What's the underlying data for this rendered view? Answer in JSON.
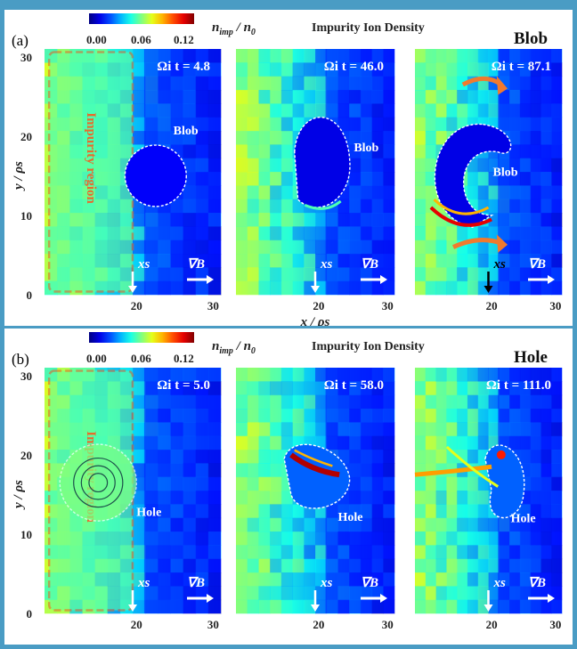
{
  "chart_data": [
    {
      "type": "heatmap",
      "panel_label": "(a)",
      "title": "Impurity Ion Density",
      "case_label": "Blob",
      "colorbar": {
        "label": "n_imp / n_0",
        "ticks": [
          "0.00",
          "0.06",
          "0.12"
        ],
        "range": [
          0.0,
          0.12
        ]
      },
      "ylabel": "y / ρs",
      "xlabel": "x / ρs",
      "y_ticks": [
        "0",
        "10",
        "20",
        "30"
      ],
      "x_ticks_per_subplot": [
        [
          "20",
          "30"
        ],
        [
          "20",
          "30"
        ],
        [
          "20",
          "30"
        ]
      ],
      "region_label": "Impurity region",
      "marker_label": "xs",
      "gradient_label": "∇B",
      "subplots": [
        {
          "time_label": "Ωi t = 4.8",
          "structure_label": "Blob"
        },
        {
          "time_label": "Ωi t = 46.0",
          "structure_label": "Blob"
        },
        {
          "time_label": "Ωi t = 87.1",
          "structure_label": "Blob"
        }
      ]
    },
    {
      "type": "heatmap",
      "panel_label": "(b)",
      "title": "Impurity Ion Density",
      "case_label": "Hole",
      "colorbar": {
        "label": "n_imp / n_0",
        "ticks": [
          "0.00",
          "0.06",
          "0.12"
        ],
        "range": [
          0.0,
          0.12
        ]
      },
      "ylabel": "y / ρs",
      "y_ticks": [
        "0",
        "10",
        "20",
        "30"
      ],
      "x_ticks_per_subplot": [
        [
          "20",
          "30"
        ],
        [
          "20",
          "30"
        ],
        [
          "20",
          "30"
        ]
      ],
      "region_label": "Impurity region",
      "marker_label": "xs",
      "gradient_label": "∇B",
      "subplots": [
        {
          "time_label": "Ωi t = 5.0",
          "structure_label": "Hole"
        },
        {
          "time_label": "Ωi t = 58.0",
          "structure_label": "Hole"
        },
        {
          "time_label": "Ωi t = 111.0",
          "structure_label": "Hole"
        }
      ]
    }
  ]
}
